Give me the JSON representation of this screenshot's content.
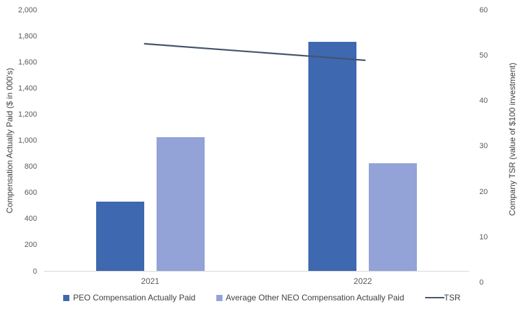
{
  "chart_data": {
    "type": "combo-bar-line",
    "categories": [
      "2021",
      "2022"
    ],
    "series": [
      {
        "name": "PEO Compensation Actually Paid",
        "type": "bar",
        "axis": "left",
        "color": "#3E68B0",
        "values": [
          535,
          1760
        ]
      },
      {
        "name": "Average Other NEO Compensation Actually Paid",
        "type": "bar",
        "axis": "left",
        "color": "#93A3D7",
        "values": [
          1030,
          830
        ]
      },
      {
        "name": "TSR",
        "type": "line",
        "axis": "right",
        "color": "#44546A",
        "values": [
          52.5,
          49
        ]
      }
    ],
    "left_axis": {
      "title": "Compensation Actually Paid ($ in 000’s)",
      "min": 0,
      "max": 2000,
      "step": 200,
      "ticks": [
        "0",
        "200",
        "400",
        "600",
        "800",
        "1,000",
        "1,200",
        "1,400",
        "1,600",
        "1,800",
        "2,000"
      ]
    },
    "right_axis": {
      "title": "Company TSR (value of $100 investment)",
      "min": 0,
      "max": 60,
      "step": 10,
      "ticks": [
        "0",
        "10",
        "20",
        "30",
        "40",
        "50",
        "60"
      ]
    },
    "legend_position": "bottom",
    "gridlines": false,
    "colors": {
      "background": "#FFFFFF",
      "axis_line": "#D9D9D9",
      "tick_text": "#595959",
      "title_text": "#404040"
    }
  }
}
